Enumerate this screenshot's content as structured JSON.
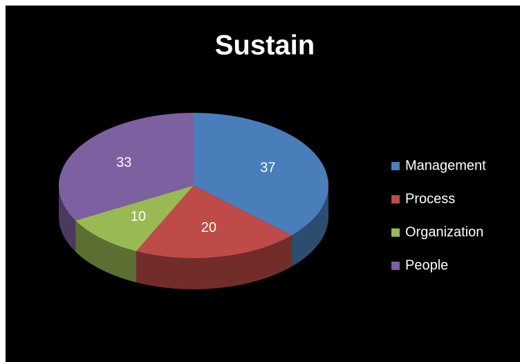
{
  "chart_data": {
    "type": "pie",
    "title": "Sustain",
    "categories": [
      "Management",
      "Process",
      "Organization",
      "People"
    ],
    "values": [
      37,
      20,
      10,
      33
    ],
    "colors": [
      "#4a7ebb",
      "#be4b48",
      "#98b954",
      "#7d60a0"
    ],
    "legend": "right"
  }
}
